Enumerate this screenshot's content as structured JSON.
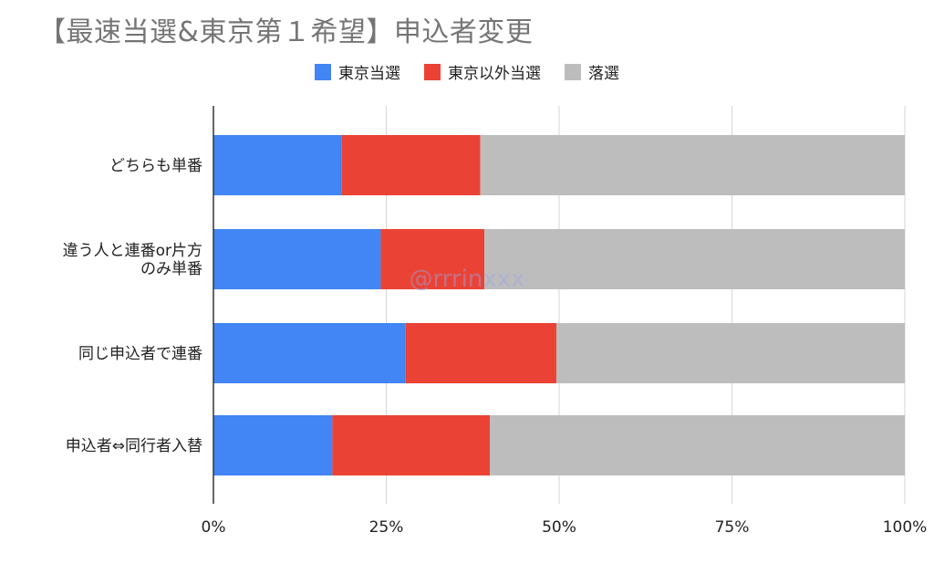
{
  "chart_data": {
    "type": "bar",
    "orientation": "horizontal",
    "stacked": true,
    "title": "【最速当選&東京第１希望】申込者変更",
    "categories": [
      "どちらも単番",
      "違う人と連番or片方のみ単番",
      "同じ申込者で連番",
      "申込者⇔同行者入替"
    ],
    "category_lines": [
      [
        "どちらも単番"
      ],
      [
        "違う人と連番or片方",
        "のみ単番"
      ],
      [
        "同じ申込者で連番"
      ],
      [
        "申込者⇔同行者入替"
      ]
    ],
    "series": [
      {
        "name": "東京当選",
        "color": "#4285f4",
        "values": [
          18.5,
          24.2,
          27.8,
          17.2
        ]
      },
      {
        "name": "東京以外当選",
        "color": "#ea4335",
        "values": [
          20.1,
          15.0,
          21.8,
          22.8
        ]
      },
      {
        "name": "落選",
        "color": "#bdbdbd",
        "values": [
          61.4,
          60.8,
          50.4,
          60.0
        ]
      }
    ],
    "xlim": [
      0,
      100
    ],
    "x_ticks": [
      "0%",
      "25%",
      "50%",
      "75%",
      "100%"
    ],
    "x_tick_values": [
      0,
      25,
      50,
      75,
      100
    ],
    "grid": true,
    "legend_position": "top",
    "watermark": "@rrrinxxx"
  }
}
